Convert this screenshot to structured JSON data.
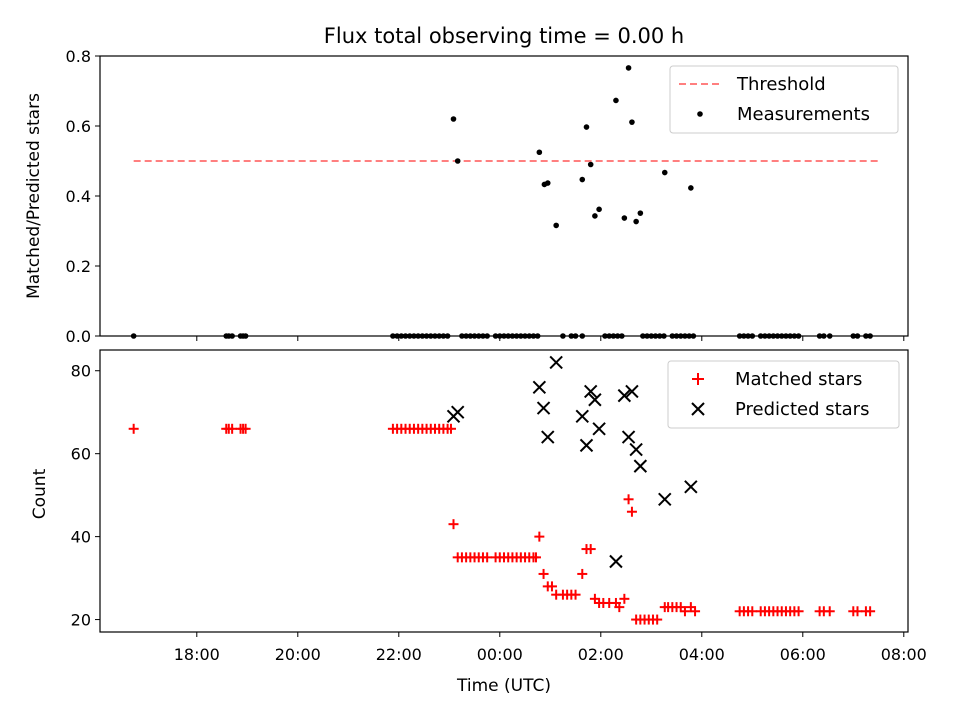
{
  "title": "Flux total observing time = 0.00 h",
  "xlabel": "Time (UTC)",
  "chart_data": [
    {
      "type": "scatter",
      "ylabel": "Matched/Predicted stars",
      "ylim": [
        0,
        0.8
      ],
      "yticks": [
        "0.0",
        "0.2",
        "0.4",
        "0.6",
        "0.8"
      ],
      "legend_position": "top-right",
      "threshold": {
        "name": "Threshold",
        "value": 0.5,
        "x_range": [
          "16:45",
          "07:30"
        ],
        "color": "#ff7f7f"
      },
      "series": [
        {
          "name": "Measurements",
          "color": "#000000",
          "points": [
            [
              "16:45",
              0
            ],
            [
              "18:35",
              0
            ],
            [
              "18:38",
              0
            ],
            [
              "18:42",
              0
            ],
            [
              "18:52",
              0
            ],
            [
              "18:55",
              0
            ],
            [
              "18:58",
              0
            ],
            [
              "21:53",
              0
            ],
            [
              "21:58",
              0
            ],
            [
              "22:03",
              0
            ],
            [
              "22:08",
              0
            ],
            [
              "22:13",
              0
            ],
            [
              "22:18",
              0
            ],
            [
              "22:23",
              0
            ],
            [
              "22:28",
              0
            ],
            [
              "22:33",
              0
            ],
            [
              "22:38",
              0
            ],
            [
              "22:43",
              0
            ],
            [
              "22:48",
              0
            ],
            [
              "22:53",
              0
            ],
            [
              "22:58",
              0
            ],
            [
              "23:05",
              0.62
            ],
            [
              "23:10",
              0.5
            ],
            [
              "23:15",
              0
            ],
            [
              "23:20",
              0
            ],
            [
              "23:25",
              0
            ],
            [
              "23:30",
              0
            ],
            [
              "23:35",
              0
            ],
            [
              "23:40",
              0
            ],
            [
              "23:45",
              0
            ],
            [
              "23:55",
              0
            ],
            [
              "00:00",
              0
            ],
            [
              "00:05",
              0
            ],
            [
              "00:10",
              0
            ],
            [
              "00:15",
              0
            ],
            [
              "00:20",
              0
            ],
            [
              "00:25",
              0
            ],
            [
              "00:30",
              0
            ],
            [
              "00:35",
              0
            ],
            [
              "00:40",
              0
            ],
            [
              "00:45",
              0
            ],
            [
              "00:47",
              0.525
            ],
            [
              "00:53",
              0.433
            ],
            [
              "00:57",
              0.437
            ],
            [
              "01:07",
              0.316
            ],
            [
              "01:15",
              0
            ],
            [
              "01:25",
              0
            ],
            [
              "01:30",
              0
            ],
            [
              "01:38",
              0
            ],
            [
              "01:38",
              0.447
            ],
            [
              "01:43",
              0.597
            ],
            [
              "01:48",
              0.49
            ],
            [
              "01:53",
              0.343
            ],
            [
              "01:58",
              0.362
            ],
            [
              "02:05",
              0
            ],
            [
              "02:10",
              0
            ],
            [
              "02:15",
              0
            ],
            [
              "02:20",
              0
            ],
            [
              "02:25",
              0
            ],
            [
              "02:18",
              0.673
            ],
            [
              "02:28",
              0.337
            ],
            [
              "02:33",
              0.766
            ],
            [
              "02:37",
              0.611
            ],
            [
              "02:42",
              0.327
            ],
            [
              "02:47",
              0.351
            ],
            [
              "02:50",
              0
            ],
            [
              "02:55",
              0
            ],
            [
              "03:00",
              0
            ],
            [
              "03:05",
              0
            ],
            [
              "03:10",
              0
            ],
            [
              "03:15",
              0
            ],
            [
              "03:25",
              0
            ],
            [
              "03:30",
              0
            ],
            [
              "03:35",
              0
            ],
            [
              "03:40",
              0
            ],
            [
              "03:45",
              0
            ],
            [
              "03:50",
              0
            ],
            [
              "03:16",
              0.467
            ],
            [
              "03:47",
              0.423
            ],
            [
              "04:45",
              0
            ],
            [
              "04:50",
              0
            ],
            [
              "04:55",
              0
            ],
            [
              "05:00",
              0
            ],
            [
              "05:10",
              0
            ],
            [
              "05:15",
              0
            ],
            [
              "05:20",
              0
            ],
            [
              "05:25",
              0
            ],
            [
              "05:30",
              0
            ],
            [
              "05:35",
              0
            ],
            [
              "05:40",
              0
            ],
            [
              "05:45",
              0
            ],
            [
              "05:50",
              0
            ],
            [
              "05:55",
              0
            ],
            [
              "06:20",
              0
            ],
            [
              "06:25",
              0
            ],
            [
              "06:32",
              0
            ],
            [
              "07:00",
              0
            ],
            [
              "07:05",
              0
            ],
            [
              "07:15",
              0
            ],
            [
              "07:20",
              0
            ]
          ]
        }
      ]
    },
    {
      "type": "scatter",
      "ylabel": "Count",
      "ylim": [
        17,
        85
      ],
      "yticks": [
        "20",
        "40",
        "60",
        "80"
      ],
      "legend_position": "top-right",
      "series": [
        {
          "name": "Matched stars",
          "marker": "plus",
          "color": "#ff0000",
          "points": [
            [
              "16:45",
              66
            ],
            [
              "18:35",
              66
            ],
            [
              "18:38",
              66
            ],
            [
              "18:42",
              66
            ],
            [
              "18:52",
              66
            ],
            [
              "18:55",
              66
            ],
            [
              "18:58",
              66
            ],
            [
              "21:53",
              66
            ],
            [
              "21:58",
              66
            ],
            [
              "22:03",
              66
            ],
            [
              "22:08",
              66
            ],
            [
              "22:13",
              66
            ],
            [
              "22:18",
              66
            ],
            [
              "22:23",
              66
            ],
            [
              "22:28",
              66
            ],
            [
              "22:33",
              66
            ],
            [
              "22:38",
              66
            ],
            [
              "22:43",
              66
            ],
            [
              "22:48",
              66
            ],
            [
              "22:53",
              66
            ],
            [
              "22:58",
              66
            ],
            [
              "23:02",
              66
            ],
            [
              "23:05",
              43
            ],
            [
              "23:10",
              35
            ],
            [
              "23:15",
              35
            ],
            [
              "23:20",
              35
            ],
            [
              "23:25",
              35
            ],
            [
              "23:30",
              35
            ],
            [
              "23:35",
              35
            ],
            [
              "23:40",
              35
            ],
            [
              "23:45",
              35
            ],
            [
              "23:55",
              35
            ],
            [
              "00:00",
              35
            ],
            [
              "00:05",
              35
            ],
            [
              "00:10",
              35
            ],
            [
              "00:15",
              35
            ],
            [
              "00:20",
              35
            ],
            [
              "00:25",
              35
            ],
            [
              "00:30",
              35
            ],
            [
              "00:35",
              35
            ],
            [
              "00:40",
              35
            ],
            [
              "00:43",
              35
            ],
            [
              "00:47",
              40
            ],
            [
              "00:52",
              31
            ],
            [
              "00:57",
              28
            ],
            [
              "01:02",
              28
            ],
            [
              "01:07",
              26
            ],
            [
              "01:15",
              26
            ],
            [
              "01:20",
              26
            ],
            [
              "01:25",
              26
            ],
            [
              "01:30",
              26
            ],
            [
              "01:38",
              31
            ],
            [
              "01:43",
              37
            ],
            [
              "01:48",
              37
            ],
            [
              "01:53",
              25
            ],
            [
              "01:58",
              24
            ],
            [
              "02:03",
              24
            ],
            [
              "02:10",
              24
            ],
            [
              "02:18",
              24
            ],
            [
              "02:22",
              23
            ],
            [
              "02:28",
              25
            ],
            [
              "02:33",
              49
            ],
            [
              "02:37",
              46
            ],
            [
              "02:42",
              20
            ],
            [
              "02:47",
              20
            ],
            [
              "02:52",
              20
            ],
            [
              "02:57",
              20
            ],
            [
              "03:02",
              20
            ],
            [
              "03:07",
              20
            ],
            [
              "03:16",
              23
            ],
            [
              "03:20",
              23
            ],
            [
              "03:25",
              23
            ],
            [
              "03:30",
              23
            ],
            [
              "03:35",
              23
            ],
            [
              "03:40",
              22
            ],
            [
              "03:47",
              23
            ],
            [
              "03:52",
              22
            ],
            [
              "04:45",
              22
            ],
            [
              "04:50",
              22
            ],
            [
              "04:55",
              22
            ],
            [
              "05:00",
              22
            ],
            [
              "05:10",
              22
            ],
            [
              "05:15",
              22
            ],
            [
              "05:20",
              22
            ],
            [
              "05:25",
              22
            ],
            [
              "05:30",
              22
            ],
            [
              "05:35",
              22
            ],
            [
              "05:40",
              22
            ],
            [
              "05:45",
              22
            ],
            [
              "05:50",
              22
            ],
            [
              "05:55",
              22
            ],
            [
              "06:20",
              22
            ],
            [
              "06:25",
              22
            ],
            [
              "06:32",
              22
            ],
            [
              "07:00",
              22
            ],
            [
              "07:05",
              22
            ],
            [
              "07:15",
              22
            ],
            [
              "07:20",
              22
            ]
          ]
        },
        {
          "name": "Predicted stars",
          "marker": "x",
          "color": "#000000",
          "points": [
            [
              "23:05",
              69
            ],
            [
              "23:10",
              70
            ],
            [
              "00:47",
              76
            ],
            [
              "00:52",
              71
            ],
            [
              "00:57",
              64
            ],
            [
              "01:07",
              82
            ],
            [
              "01:38",
              69
            ],
            [
              "01:43",
              62
            ],
            [
              "01:48",
              75
            ],
            [
              "01:53",
              73
            ],
            [
              "01:58",
              66
            ],
            [
              "02:18",
              34
            ],
            [
              "02:28",
              74
            ],
            [
              "02:33",
              64
            ],
            [
              "02:37",
              75
            ],
            [
              "02:42",
              61
            ],
            [
              "02:47",
              57
            ],
            [
              "03:16",
              49
            ],
            [
              "03:47",
              52
            ]
          ]
        }
      ]
    }
  ],
  "xaxis": {
    "range": [
      "16:05",
      "08:05"
    ],
    "ticks": [
      "18:00",
      "20:00",
      "22:00",
      "00:00",
      "02:00",
      "04:00",
      "06:00",
      "08:00"
    ]
  }
}
